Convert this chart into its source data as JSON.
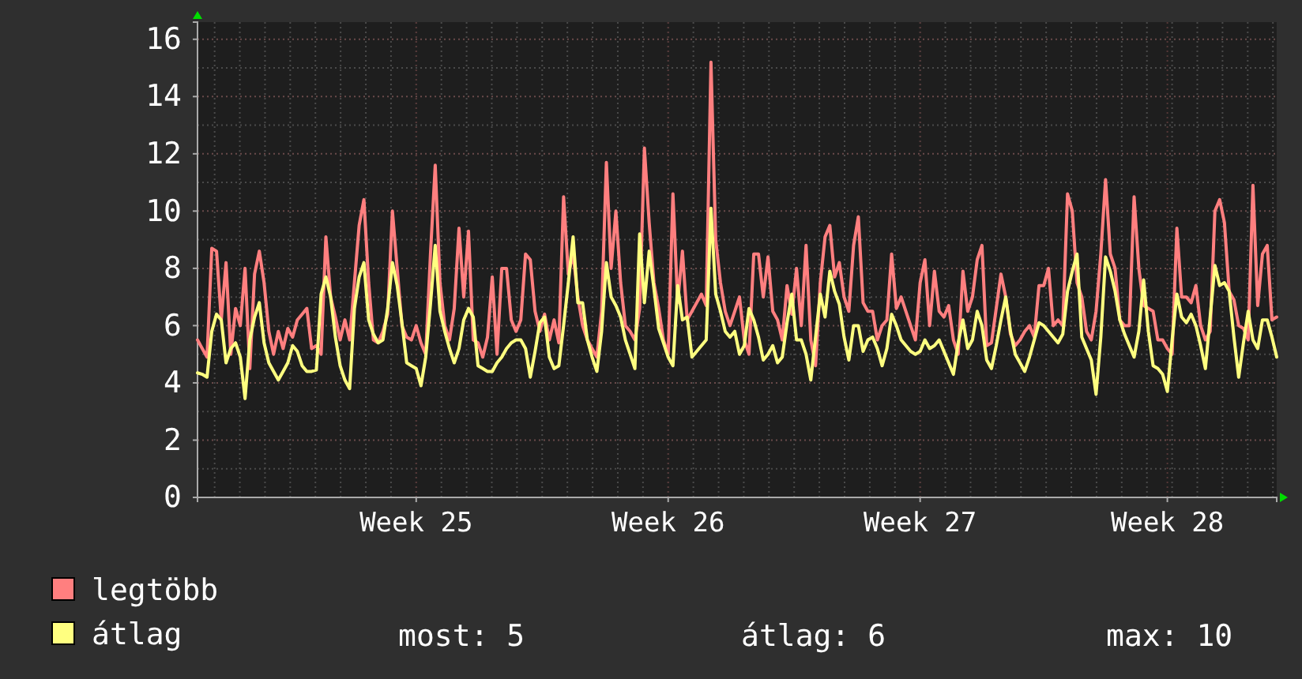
{
  "chart_data": {
    "type": "line",
    "ylim": [
      0,
      16.6
    ],
    "yticks": [
      0,
      2,
      4,
      6,
      8,
      10,
      12,
      14,
      16
    ],
    "categories": [
      null,
      null,
      null,
      null,
      null,
      null,
      null,
      null,
      null,
      null,
      null,
      null,
      null,
      null,
      null,
      null,
      null,
      null,
      null,
      null,
      null,
      null,
      null,
      null,
      null,
      null,
      null,
      null,
      null,
      null,
      null,
      null,
      null,
      null,
      null,
      null,
      null,
      null,
      null,
      null,
      null,
      null,
      null,
      null,
      null,
      null,
      "Week 25",
      null,
      null,
      null,
      null,
      null,
      null,
      null,
      null,
      null,
      null,
      null,
      null,
      null,
      null,
      null,
      null,
      null,
      null,
      null,
      null,
      null,
      null,
      null,
      null,
      null,
      null,
      null,
      null,
      null,
      null,
      null,
      null,
      null,
      null,
      null,
      null,
      null,
      null,
      null,
      null,
      null,
      null,
      null,
      null,
      null,
      null,
      null,
      null,
      null,
      null,
      null,
      null,
      "Week 26",
      null,
      null,
      null,
      null,
      null,
      null,
      null,
      null,
      null,
      null,
      null,
      null,
      null,
      null,
      null,
      null,
      null,
      null,
      null,
      null,
      null,
      null,
      null,
      null,
      null,
      null,
      null,
      null,
      null,
      null,
      null,
      null,
      null,
      null,
      null,
      null,
      null,
      null,
      null,
      null,
      null,
      null,
      null,
      null,
      null,
      null,
      null,
      null,
      null,
      null,
      null,
      null,
      "Week 27",
      null,
      null,
      null,
      null,
      null,
      null,
      null,
      null,
      null,
      null,
      null,
      null,
      null,
      null,
      null,
      null,
      null,
      null,
      null,
      null,
      null,
      null,
      null,
      null,
      null,
      null,
      null,
      null,
      null,
      null,
      null,
      null,
      null,
      null,
      null,
      null,
      null,
      null,
      null,
      null,
      null,
      null,
      null,
      null,
      null,
      null,
      null,
      null,
      null,
      null,
      null,
      "Week 28",
      null,
      null,
      null,
      null,
      null,
      null,
      null,
      null,
      null,
      null,
      null,
      null,
      null,
      null,
      null,
      null,
      null,
      null,
      null,
      null,
      null,
      null,
      null
    ],
    "grid": true,
    "legend": "bottom",
    "line_style": "solid",
    "marker": "none",
    "annotations": [
      "most: 5",
      "átlag: 6",
      "max: 10"
    ],
    "series": [
      {
        "name": "legtöbb",
        "color": "#ff7f7f",
        "values": [
          5.5,
          5.2,
          4.9,
          8.7,
          8.6,
          6.2,
          8.2,
          5.0,
          6.6,
          6.0,
          8.0,
          4.5,
          7.8,
          8.6,
          7.5,
          5.8,
          5.0,
          5.8,
          5.2,
          5.9,
          5.6,
          6.2,
          6.4,
          6.6,
          5.2,
          5.3,
          5.0,
          9.1,
          7.0,
          6.3,
          5.5,
          6.2,
          5.5,
          7.5,
          9.5,
          10.4,
          7.5,
          5.5,
          5.4,
          5.8,
          6.4,
          10.0,
          8.0,
          6.0,
          5.6,
          5.5,
          6.0,
          5.4,
          5.0,
          8.5,
          11.6,
          7.5,
          6.0,
          5.5,
          6.6,
          9.4,
          7.0,
          9.3,
          5.5,
          5.4,
          4.9,
          5.6,
          7.7,
          5.0,
          8.0,
          8.0,
          6.2,
          5.8,
          6.2,
          8.5,
          8.3,
          6.5,
          5.8,
          6.4,
          5.5,
          6.2,
          5.4,
          10.5,
          7.8,
          8.5,
          7.0,
          6.0,
          5.5,
          5.2,
          4.9,
          6.5,
          11.7,
          8.0,
          10.0,
          7.5,
          6.0,
          5.8,
          5.5,
          6.6,
          12.2,
          9.6,
          7.5,
          6.6,
          5.5,
          5.0,
          10.6,
          6.8,
          8.6,
          6.2,
          6.5,
          6.8,
          7.1,
          6.7,
          15.2,
          9.0,
          7.5,
          6.5,
          6.0,
          6.5,
          7.0,
          5.5,
          5.0,
          8.5,
          8.5,
          7.0,
          8.4,
          6.5,
          6.2,
          5.5,
          7.4,
          6.4,
          8.0,
          6.0,
          8.8,
          5.5,
          4.6,
          7.5,
          9.1,
          9.5,
          7.7,
          8.2,
          7.0,
          6.5,
          8.8,
          9.8,
          6.8,
          6.5,
          6.5,
          5.5,
          6.0,
          6.2,
          8.5,
          6.6,
          7.0,
          6.5,
          6.0,
          5.5,
          7.5,
          8.3,
          6.0,
          7.9,
          6.5,
          6.3,
          6.7,
          5.5,
          5.0,
          7.9,
          6.5,
          7.0,
          8.3,
          8.8,
          5.3,
          5.4,
          6.6,
          7.8,
          7.0,
          5.7,
          5.3,
          5.5,
          5.8,
          6.0,
          5.6,
          7.4,
          7.4,
          8.0,
          6.0,
          6.2,
          6.0,
          10.6,
          10.0,
          7.5,
          7.0,
          5.8,
          5.5,
          6.5,
          8.5,
          11.1,
          8.5,
          8.0,
          6.2,
          6.0,
          6.0,
          10.5,
          8.0,
          6.7,
          6.6,
          6.5,
          5.5,
          5.5,
          5.2,
          5.0,
          9.4,
          7.0,
          7.0,
          6.8,
          7.4,
          6.0,
          5.5,
          5.8,
          10.0,
          10.4,
          9.6,
          7.2,
          6.9,
          6.0,
          5.9,
          5.5,
          10.9,
          6.7,
          8.5,
          8.8,
          6.2,
          6.3
        ]
      },
      {
        "name": "átlag",
        "color": "#ffff80",
        "values": [
          4.35,
          4.3,
          4.2,
          5.8,
          6.4,
          6.2,
          4.7,
          5.2,
          5.4,
          4.9,
          3.45,
          5.5,
          6.3,
          6.8,
          5.4,
          4.7,
          4.4,
          4.1,
          4.4,
          4.7,
          5.3,
          5.1,
          4.6,
          4.4,
          4.4,
          4.45,
          7.1,
          7.7,
          7.0,
          5.6,
          4.6,
          4.1,
          3.8,
          6.6,
          7.7,
          8.2,
          6.2,
          5.7,
          5.4,
          5.5,
          6.6,
          8.2,
          7.4,
          6.1,
          4.7,
          4.6,
          4.5,
          3.9,
          4.9,
          6.75,
          8.8,
          6.5,
          5.8,
          5.2,
          4.7,
          5.2,
          6.2,
          6.6,
          6.3,
          4.6,
          4.5,
          4.4,
          4.4,
          4.7,
          4.9,
          5.2,
          5.4,
          5.5,
          5.5,
          5.2,
          4.2,
          5.1,
          6.1,
          6.3,
          4.9,
          4.5,
          4.6,
          6.0,
          7.5,
          9.1,
          6.8,
          6.8,
          5.5,
          4.9,
          4.4,
          5.8,
          8.2,
          7.0,
          6.7,
          6.3,
          5.5,
          5.0,
          4.5,
          9.2,
          6.8,
          8.6,
          7.3,
          5.9,
          5.4,
          4.9,
          4.6,
          7.4,
          6.2,
          6.3,
          4.9,
          5.1,
          5.3,
          5.5,
          10.1,
          7.1,
          6.5,
          5.8,
          5.6,
          5.8,
          5.0,
          5.3,
          6.6,
          6.2,
          5.6,
          4.8,
          5.0,
          5.3,
          4.7,
          4.9,
          6.1,
          7.1,
          5.5,
          5.5,
          5.0,
          4.1,
          5.6,
          7.1,
          6.3,
          7.9,
          7.2,
          6.75,
          5.6,
          4.8,
          6.0,
          6.0,
          5.1,
          5.5,
          5.6,
          5.2,
          4.6,
          5.2,
          6.4,
          6.0,
          5.5,
          5.3,
          5.1,
          5.0,
          5.1,
          5.5,
          5.2,
          5.3,
          5.5,
          5.1,
          4.7,
          4.3,
          5.4,
          6.2,
          5.2,
          5.5,
          6.5,
          6.0,
          4.8,
          4.5,
          5.3,
          6.2,
          7.0,
          5.8,
          5.0,
          4.7,
          4.4,
          4.9,
          5.5,
          6.1,
          6.0,
          5.8,
          5.6,
          5.4,
          5.7,
          7.2,
          7.9,
          8.5,
          5.6,
          5.2,
          4.8,
          3.6,
          5.6,
          8.4,
          7.9,
          7.2,
          6.2,
          5.7,
          5.3,
          4.9,
          5.8,
          7.6,
          5.8,
          4.6,
          4.5,
          4.3,
          3.7,
          5.5,
          7.1,
          6.3,
          6.1,
          6.4,
          6.0,
          5.3,
          4.5,
          6.3,
          8.1,
          7.4,
          7.5,
          7.2,
          5.6,
          4.2,
          5.4,
          6.5,
          5.5,
          5.2,
          6.2,
          6.2,
          5.6,
          4.9
        ]
      }
    ]
  }
}
